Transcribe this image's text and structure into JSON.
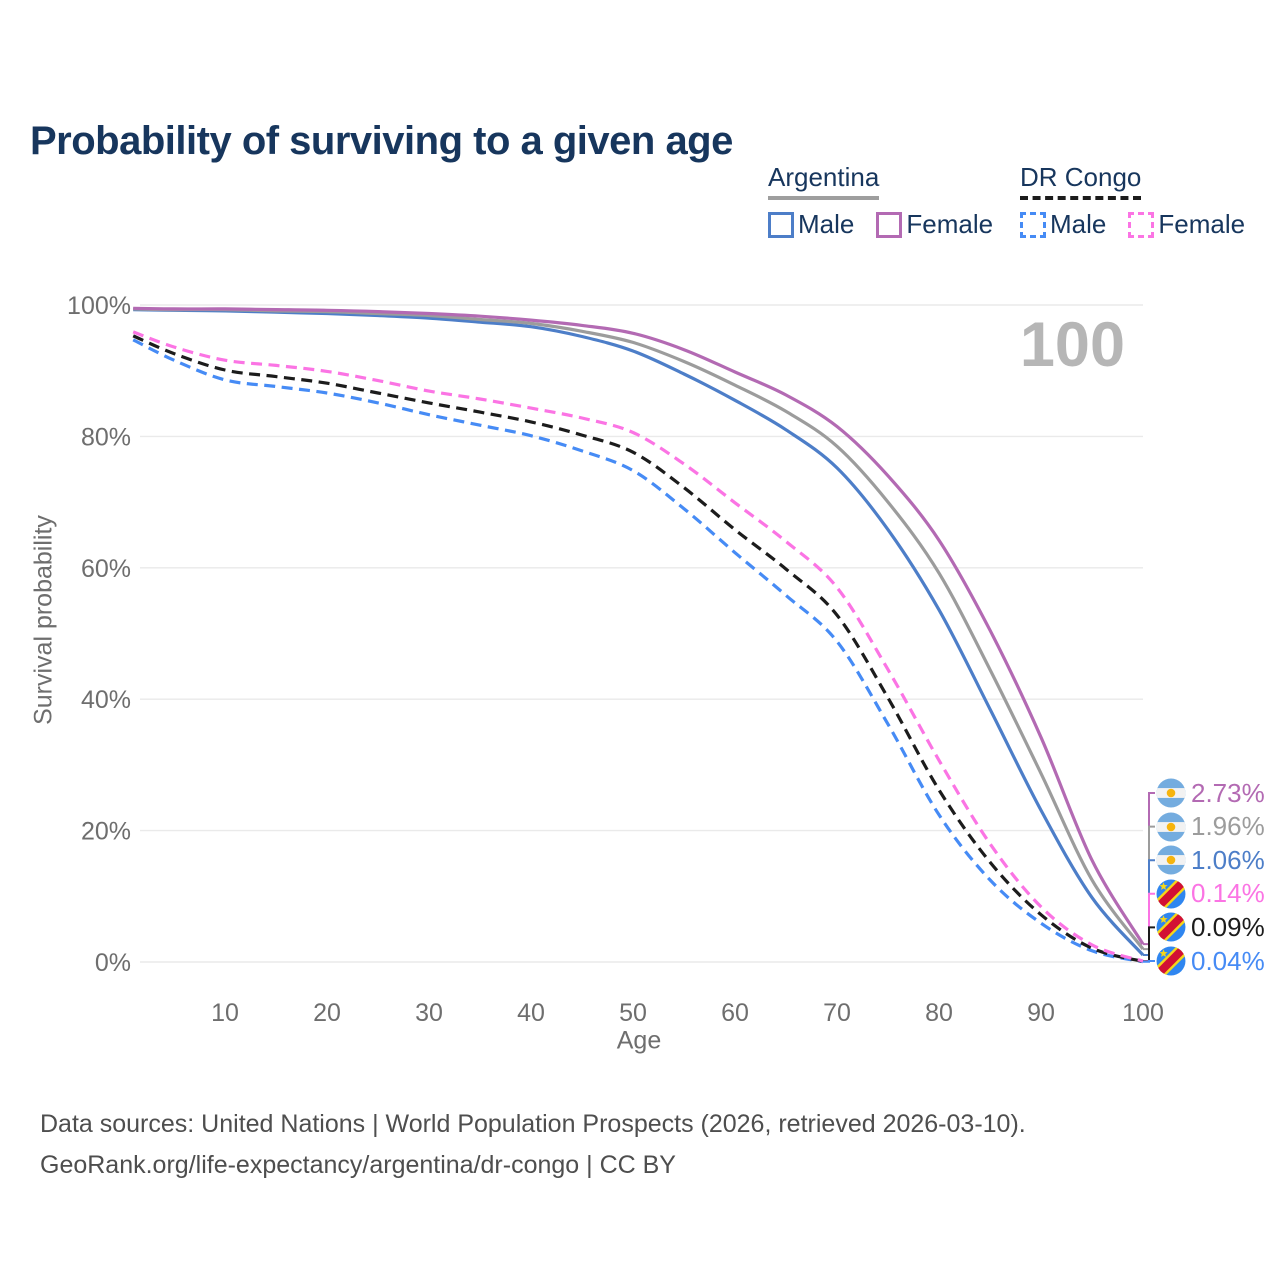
{
  "title": "Probability of surviving to a given age",
  "legend": {
    "position": "top-right",
    "groups": [
      {
        "label": "Argentina",
        "line_style": "solid",
        "underline_color": "#9e9e9e",
        "items": [
          {
            "label": "Male",
            "color": "#4d7ec8",
            "dashed": false
          },
          {
            "label": "Female",
            "color": "#b36ab3",
            "dashed": false
          }
        ]
      },
      {
        "label": "DR Congo",
        "line_style": "dashed",
        "underline_color": "#1c1c1c",
        "items": [
          {
            "label": "Male",
            "color": "#468bf5",
            "dashed": true
          },
          {
            "label": "Female",
            "color": "#fb74e4",
            "dashed": true
          }
        ]
      }
    ]
  },
  "chart_data": {
    "type": "line",
    "title": "Probability of surviving to a given age",
    "xlabel": "Age",
    "ylabel": "Survival probability",
    "xlim": [
      0,
      100
    ],
    "ylim": [
      0,
      100
    ],
    "grid": "horizontal",
    "age_watermark": "100",
    "x_ticks": [
      10,
      20,
      30,
      40,
      50,
      60,
      70,
      80,
      90,
      100
    ],
    "y_ticks": [
      {
        "value": 0,
        "label": "0%"
      },
      {
        "value": 20,
        "label": "20%"
      },
      {
        "value": 40,
        "label": "40%"
      },
      {
        "value": 60,
        "label": "60%"
      },
      {
        "value": 80,
        "label": "80%"
      },
      {
        "value": 100,
        "label": "100%"
      }
    ],
    "x": [
      1,
      5,
      10,
      15,
      20,
      25,
      30,
      35,
      40,
      45,
      50,
      55,
      60,
      65,
      70,
      75,
      80,
      85,
      90,
      95,
      100
    ],
    "series": [
      {
        "id": "drc-male",
        "name": "DR Congo Male",
        "country": "DR Congo",
        "sex": "male",
        "color": "#468bf5",
        "dashed": true,
        "end_label": "0.04%",
        "values": [
          94.7,
          91.6,
          88.6,
          87.6,
          86.6,
          85.1,
          83.3,
          81.7,
          80.1,
          77.8,
          74.8,
          69.0,
          62.3,
          55.8,
          48.8,
          36.2,
          22.4,
          12.5,
          5.9,
          1.7,
          0.04
        ]
      },
      {
        "id": "drc-both",
        "name": "DR Congo Both sexes",
        "country": "DR Congo",
        "sex": "both",
        "color": "#1c1c1c",
        "dashed": true,
        "end_label": "0.09%",
        "values": [
          95.3,
          92.6,
          90.1,
          89.1,
          88.1,
          86.6,
          85.1,
          83.7,
          82.2,
          80.2,
          77.6,
          72.2,
          65.8,
          59.8,
          52.8,
          40.2,
          26.2,
          15.2,
          7.2,
          2.1,
          0.09
        ]
      },
      {
        "id": "drc-female",
        "name": "DR Congo Female",
        "country": "DR Congo",
        "sex": "female",
        "color": "#fb74e4",
        "dashed": true,
        "end_label": "0.14%",
        "values": [
          95.9,
          93.6,
          91.6,
          90.8,
          89.9,
          88.5,
          86.9,
          85.7,
          84.3,
          82.8,
          80.6,
          75.8,
          69.9,
          64.0,
          57.0,
          44.5,
          30.7,
          18.0,
          8.4,
          2.6,
          0.14
        ]
      },
      {
        "id": "argentina-male",
        "name": "Argentina Male",
        "country": "Argentina",
        "sex": "male",
        "color": "#4d7ec8",
        "dashed": false,
        "end_label": "1.06%",
        "values": [
          99.3,
          99.2,
          99.1,
          98.9,
          98.7,
          98.4,
          98.0,
          97.4,
          96.7,
          95.2,
          93.0,
          89.5,
          85.5,
          81.0,
          75.2,
          65.8,
          53.6,
          38.5,
          23.1,
          9.8,
          1.06
        ]
      },
      {
        "id": "argentina-both",
        "name": "Argentina Both sexes",
        "country": "Argentina",
        "sex": "both",
        "color": "#9c9c9c",
        "dashed": false,
        "end_label": "1.96%",
        "values": [
          99.4,
          99.3,
          99.3,
          99.1,
          99.0,
          98.7,
          98.4,
          97.8,
          97.2,
          96.0,
          94.3,
          91.4,
          87.8,
          83.8,
          78.5,
          70.0,
          59.2,
          44.5,
          28.7,
          12.5,
          1.96
        ]
      },
      {
        "id": "argentina-female",
        "name": "Argentina Female",
        "country": "Argentina",
        "sex": "female",
        "color": "#b36ab3",
        "dashed": false,
        "end_label": "2.73%",
        "values": [
          99.5,
          99.4,
          99.4,
          99.3,
          99.2,
          99.0,
          98.7,
          98.3,
          97.7,
          96.9,
          95.7,
          93.2,
          89.8,
          86.3,
          81.5,
          74.0,
          64.2,
          50.5,
          34.2,
          15.5,
          2.73
        ]
      }
    ]
  },
  "footer": {
    "line1": "Data sources: United Nations | World Population Prospects (2026, retrieved 2026-03-10).",
    "line2": "GeoRank.org/life-expectancy/argentina/dr-congo | CC BY"
  }
}
